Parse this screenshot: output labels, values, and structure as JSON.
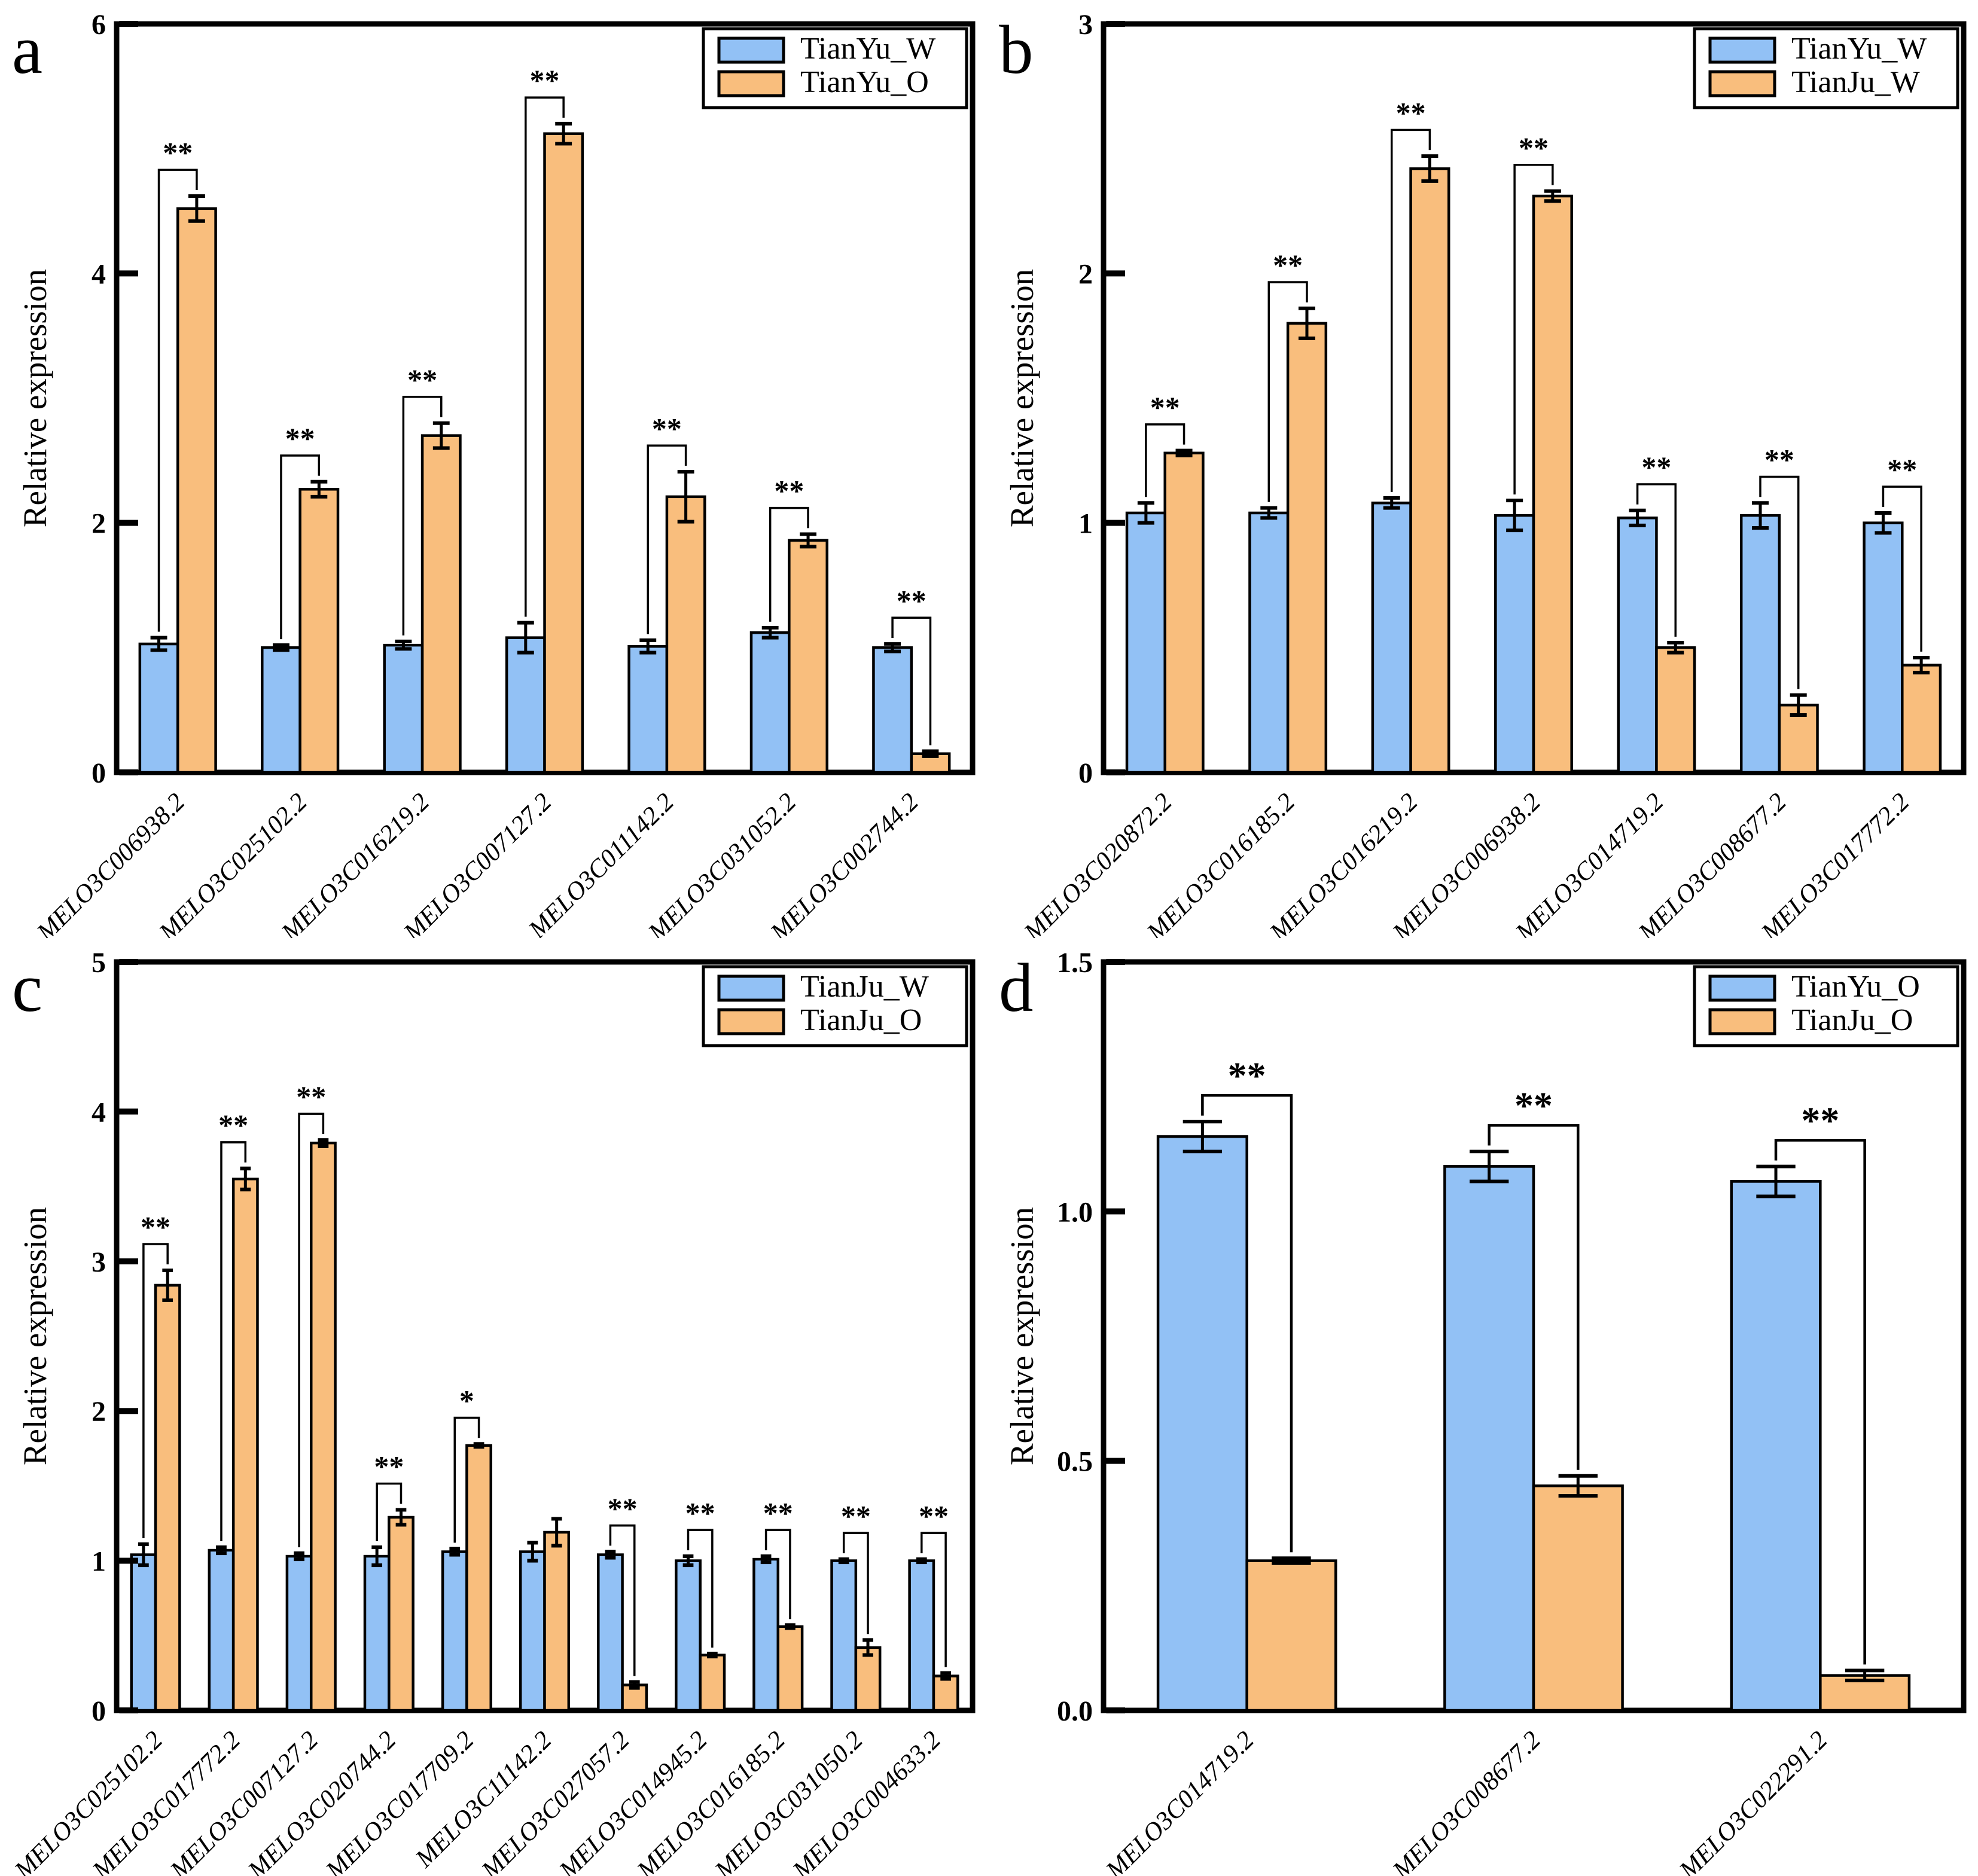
{
  "figure": {
    "background": "#ffffff",
    "outline_color": "#000000",
    "series1_color": "#92C1F5",
    "series2_color": "#F9BE7D"
  },
  "chart_data": [
    {
      "panel_letter": "a",
      "type": "bar",
      "title": "",
      "xlabel": "",
      "ylabel": "Relative expression",
      "ylim": [
        0,
        6
      ],
      "yticks": [
        "0",
        "2",
        "4",
        "6"
      ],
      "grid": false,
      "legend_position": "top-right",
      "categories": [
        "MELO3C006938.2",
        "MELO3C025102.2",
        "MELO3C016219.2",
        "MELO3C007127.2",
        "MELO3C011142.2",
        "MELO3C031052.2",
        "MELO3C002744.2"
      ],
      "series": [
        {
          "name": "TianYu_W",
          "color": "#92C1F5",
          "values": [
            1.03,
            1.0,
            1.02,
            1.08,
            1.01,
            1.12,
            1.0
          ],
          "errors": [
            0.05,
            0.02,
            0.03,
            0.12,
            0.05,
            0.04,
            0.03
          ]
        },
        {
          "name": "TianYu_O",
          "color": "#F9BE7D",
          "values": [
            4.52,
            2.27,
            2.7,
            5.12,
            2.21,
            1.86,
            0.15
          ],
          "errors": [
            0.1,
            0.06,
            0.1,
            0.08,
            0.2,
            0.05,
            0.02
          ]
        }
      ],
      "significance": [
        "**",
        "**",
        "**",
        "**",
        "**",
        "**",
        "**"
      ]
    },
    {
      "panel_letter": "b",
      "type": "bar",
      "title": "",
      "xlabel": "",
      "ylabel": "Relative expression",
      "ylim": [
        0,
        3
      ],
      "yticks": [
        "0",
        "1",
        "2",
        "3"
      ],
      "grid": false,
      "legend_position": "top-right",
      "categories": [
        "MELO3C020872.2",
        "MELO3C016185.2",
        "MELO3C016219.2",
        "MELO3C006938.2",
        "MELO3C014719.2",
        "MELO3C008677.2",
        "MELO3C017772.2"
      ],
      "series": [
        {
          "name": "TianYu_W",
          "color": "#92C1F5",
          "values": [
            1.04,
            1.04,
            1.08,
            1.03,
            1.02,
            1.03,
            1.0
          ],
          "errors": [
            0.04,
            0.02,
            0.02,
            0.06,
            0.03,
            0.05,
            0.04
          ]
        },
        {
          "name": "TianJu_W",
          "color": "#F9BE7D",
          "values": [
            1.28,
            1.8,
            2.42,
            2.31,
            0.5,
            0.27,
            0.43
          ],
          "errors": [
            0.01,
            0.06,
            0.05,
            0.02,
            0.02,
            0.04,
            0.03
          ]
        }
      ],
      "significance": [
        "**",
        "**",
        "**",
        "**",
        "**",
        "**",
        "**"
      ]
    },
    {
      "panel_letter": "c",
      "type": "bar",
      "title": "",
      "xlabel": "",
      "ylabel": "Relative expression",
      "ylim": [
        0,
        5
      ],
      "yticks": [
        "0",
        "1",
        "2",
        "3",
        "4",
        "5"
      ],
      "grid": false,
      "legend_position": "top-right",
      "categories": [
        "MELO3C025102.2",
        "MELO3C017772.2",
        "MELO3C007127.2",
        "MELO3C020744.2",
        "MELO3C017709.2",
        "MELO3C11142.2",
        "MELO3C027057.2",
        "MELO3C014945.2",
        "MELO3C016185.2",
        "MELO3C031050.2",
        "MELO3C004633.2"
      ],
      "series": [
        {
          "name": "TianJu_W",
          "color": "#92C1F5",
          "values": [
            1.04,
            1.07,
            1.03,
            1.03,
            1.06,
            1.06,
            1.04,
            1.0,
            1.01,
            1.0,
            1.0
          ],
          "errors": [
            0.07,
            0.02,
            0.02,
            0.06,
            0.02,
            0.06,
            0.02,
            0.03,
            0.02,
            0.01,
            0.01
          ]
        },
        {
          "name": "TianJu_O",
          "color": "#F9BE7D",
          "values": [
            2.84,
            3.55,
            3.79,
            1.29,
            1.77,
            1.19,
            0.17,
            0.37,
            0.56,
            0.42,
            0.23
          ],
          "errors": [
            0.1,
            0.07,
            0.02,
            0.05,
            0.01,
            0.09,
            0.02,
            0.01,
            0.01,
            0.05,
            0.02
          ]
        }
      ],
      "significance": [
        "**",
        "**",
        "**",
        "**",
        "*",
        null,
        "**",
        "**",
        "**",
        "**",
        "**"
      ]
    },
    {
      "panel_letter": "d",
      "type": "bar",
      "title": "",
      "xlabel": "",
      "ylabel": "Relative expression",
      "ylim": [
        0,
        1.5
      ],
      "yticks": [
        "0.0",
        "0.5",
        "1.0",
        "1.5"
      ],
      "grid": false,
      "legend_position": "top-right",
      "categories": [
        "MELO3C014719.2",
        "MELO3C008677.2",
        "MELO3C022291.2"
      ],
      "series": [
        {
          "name": "TianYu_O",
          "color": "#92C1F5",
          "values": [
            1.15,
            1.09,
            1.06
          ],
          "errors": [
            0.03,
            0.03,
            0.03
          ]
        },
        {
          "name": "TianJu_O",
          "color": "#F9BE7D",
          "values": [
            0.3,
            0.45,
            0.07
          ],
          "errors": [
            0.005,
            0.02,
            0.01
          ]
        }
      ],
      "significance": [
        "**",
        "**",
        "**"
      ]
    }
  ]
}
